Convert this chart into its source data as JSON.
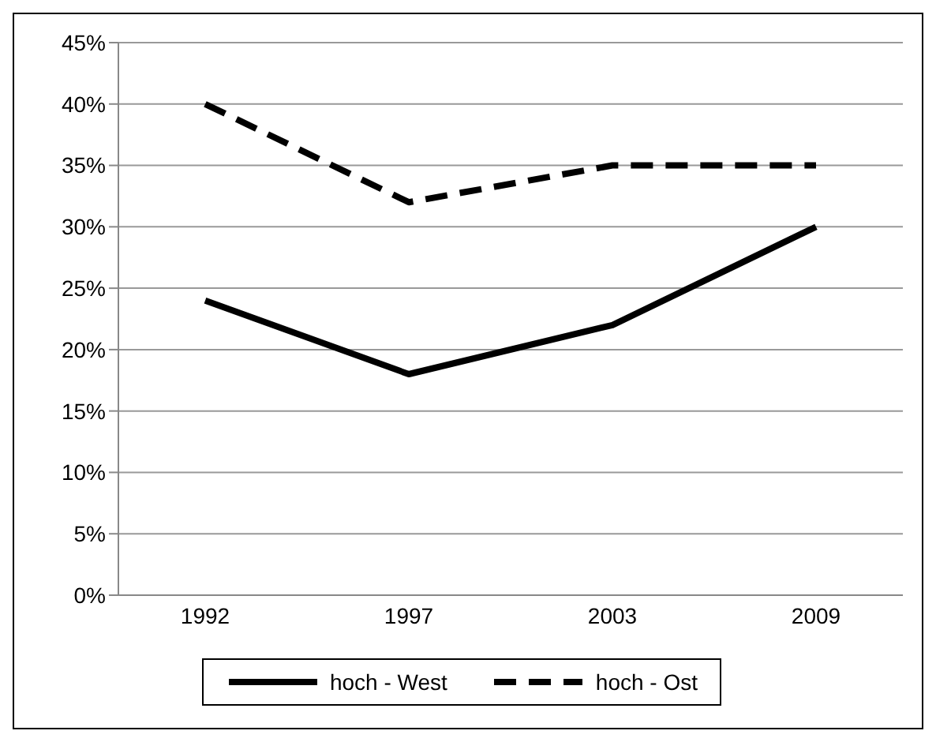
{
  "chart_data": {
    "type": "line",
    "categories": [
      "1992",
      "1997",
      "2003",
      "2009"
    ],
    "series": [
      {
        "name": "hoch - West",
        "color": "#000000",
        "values": [
          24,
          18,
          22,
          30
        ],
        "line_style": "solid"
      },
      {
        "name": "hoch - Ost",
        "color": "#000000",
        "values": [
          40,
          32,
          35,
          35
        ],
        "line_style": "dashed"
      }
    ],
    "ylim": [
      0,
      45
    ],
    "yticks": [
      {
        "value": 0,
        "label": "0%"
      },
      {
        "value": 5,
        "label": "5%"
      },
      {
        "value": 10,
        "label": "10%"
      },
      {
        "value": 15,
        "label": "15%"
      },
      {
        "value": 20,
        "label": "20%"
      },
      {
        "value": 25,
        "label": "25%"
      },
      {
        "value": 30,
        "label": "30%"
      },
      {
        "value": 35,
        "label": "35%"
      },
      {
        "value": 40,
        "label": "40%"
      },
      {
        "value": 45,
        "label": "45%"
      }
    ],
    "grid": "y",
    "legend": "bottom",
    "marker": "none"
  }
}
